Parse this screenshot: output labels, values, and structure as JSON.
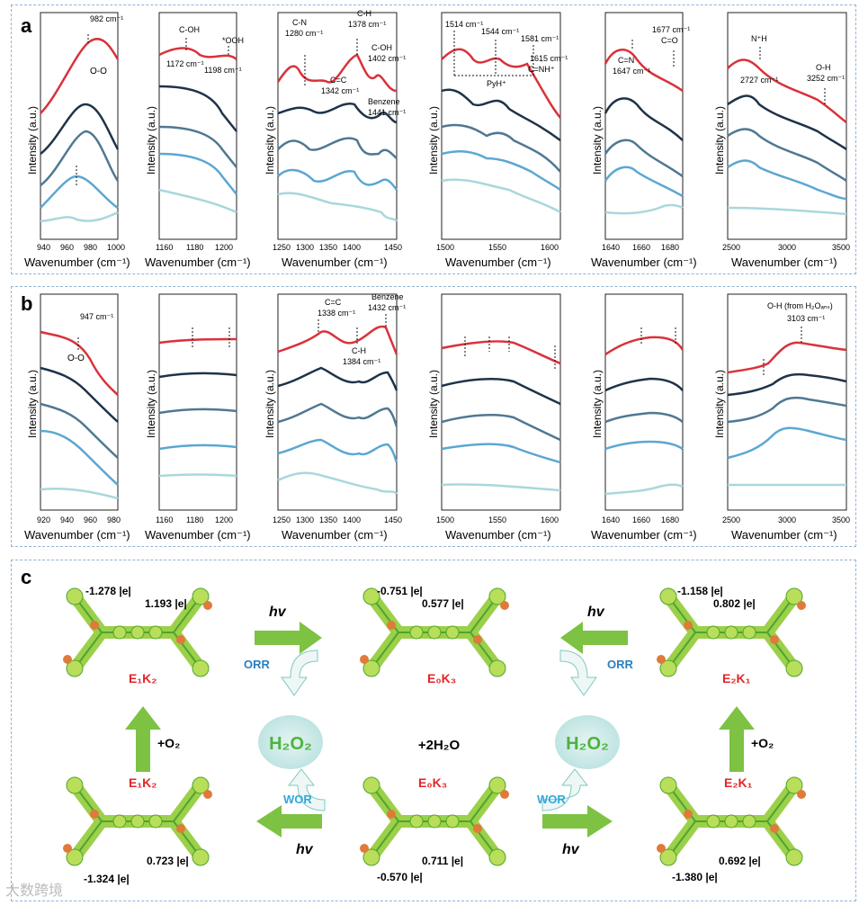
{
  "panel_a": {
    "label": "a",
    "xlabel": "Wavenumber (cm⁻¹)",
    "ylabel": "Intensity (a.u.)",
    "plots": [
      {
        "ticks": [
          "940",
          "960",
          "980",
          "1000"
        ],
        "annotations": [
          "982 cm⁻¹",
          "O-O"
        ]
      },
      {
        "ticks": [
          "1160",
          "1180",
          "1200"
        ],
        "annotations": [
          "C-OH",
          "1172 cm⁻¹",
          "*OOH",
          "1198 cm⁻¹"
        ]
      },
      {
        "ticks": [
          "1250",
          "1300",
          "1350",
          "1400",
          "1450"
        ],
        "annotations": [
          "C-N",
          "1280 cm⁻¹",
          "C-H",
          "1378 cm⁻¹",
          "C-OH",
          "1402 cm⁻¹",
          "C=C",
          "1342 cm⁻¹",
          "Benzene",
          "1441 cm⁻¹"
        ]
      },
      {
        "ticks": [
          "1500",
          "1550",
          "1600"
        ],
        "annotations": [
          "1514 cm⁻¹",
          "1544 cm⁻¹",
          "1581 cm⁻¹",
          "1615 cm⁻¹",
          "C=NH⁺",
          "PyH⁺"
        ]
      },
      {
        "ticks": [
          "1640",
          "1660",
          "1680"
        ],
        "annotations": [
          "C=N",
          "1647 cm⁻¹",
          "1677 cm⁻¹",
          "C=O"
        ]
      },
      {
        "ticks": [
          "2500",
          "3000",
          "3500"
        ],
        "annotations": [
          "N⁺H",
          "2727 cm⁻¹",
          "O-H",
          "3252 cm⁻¹"
        ]
      }
    ]
  },
  "panel_b": {
    "label": "b",
    "xlabel": "Wavenumber (cm⁻¹)",
    "ylabel": "Intensity (a.u.)",
    "plots": [
      {
        "ticks": [
          "920",
          "940",
          "960",
          "980"
        ],
        "annotations": [
          "947 cm⁻¹",
          "O-O"
        ]
      },
      {
        "ticks": [
          "1160",
          "1180",
          "1200"
        ],
        "annotations": []
      },
      {
        "ticks": [
          "1250",
          "1300",
          "1350",
          "1400",
          "1450"
        ],
        "annotations": [
          "C=C",
          "1338 cm⁻¹",
          "Benzene",
          "1432 cm⁻¹",
          "C-H",
          "1384 cm⁻¹"
        ]
      },
      {
        "ticks": [
          "1500",
          "1550",
          "1600"
        ],
        "annotations": []
      },
      {
        "ticks": [
          "1640",
          "1660",
          "1680"
        ],
        "annotations": []
      },
      {
        "ticks": [
          "2500",
          "3000",
          "3500"
        ],
        "annotations": [
          "O-H (from H₂Oₐₙₛ)",
          "3103 cm⁻¹"
        ]
      }
    ]
  },
  "panel_c": {
    "label": "c",
    "center_text": "+2H₂O",
    "h2o2": "H₂O₂",
    "hv": "hv",
    "orr": "ORR",
    "wor": "WOR",
    "o2": "+O₂",
    "molecules": {
      "top_left": {
        "name": "E₁K₂",
        "charge_neg": "-1.278 |e|",
        "charge_pos": "1.193 |e|"
      },
      "top_center": {
        "name": "E₀K₃",
        "charge_neg": "-0.751 |e|",
        "charge_pos": "0.577 |e|"
      },
      "top_right": {
        "name": "E₂K₁",
        "charge_neg": "-1.158 |e|",
        "charge_pos": "0.802 |e|"
      },
      "bottom_left": {
        "name": "E₁K₂",
        "charge_neg": "-1.324 |e|",
        "charge_pos": "0.723 |e|"
      },
      "bottom_center": {
        "name": "E₀K₃",
        "charge_neg": "-0.570 |e|",
        "charge_pos": "0.711 |e|"
      },
      "bottom_right": {
        "name": "E₂K₁",
        "charge_neg": "-1.380 |e|",
        "charge_pos": "0.692 |e|"
      }
    }
  },
  "watermark": "大数跨境",
  "colors": {
    "red": "#d9323a",
    "navy": "#1f3349",
    "steel": "#4f7892",
    "sky": "#5ba7d2",
    "pale": "#a8d8dc",
    "green": "#7dc242",
    "text_red": "#e0262a",
    "text_blue": "#2a7fc0"
  }
}
